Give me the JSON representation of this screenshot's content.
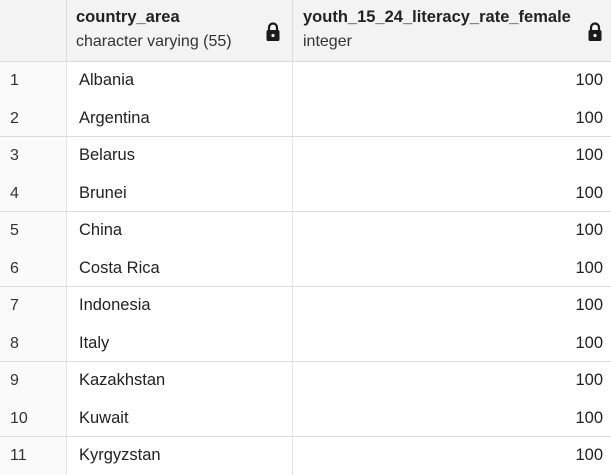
{
  "columns": [
    {
      "name": "country_area",
      "type": "character varying (55)"
    },
    {
      "name": "youth_15_24_literacy_rate_female",
      "type": "integer"
    }
  ],
  "rows": [
    {
      "num": "1",
      "country": "Albania",
      "value": "100"
    },
    {
      "num": "2",
      "country": "Argentina",
      "value": "100"
    },
    {
      "num": "3",
      "country": "Belarus",
      "value": "100"
    },
    {
      "num": "4",
      "country": "Brunei",
      "value": "100"
    },
    {
      "num": "5",
      "country": "China",
      "value": "100"
    },
    {
      "num": "6",
      "country": "Costa Rica",
      "value": "100"
    },
    {
      "num": "7",
      "country": "Indonesia",
      "value": "100"
    },
    {
      "num": "8",
      "country": "Italy",
      "value": "100"
    },
    {
      "num": "9",
      "country": "Kazakhstan",
      "value": "100"
    },
    {
      "num": "10",
      "country": "Kuwait",
      "value": "100"
    },
    {
      "num": "11",
      "country": "Kyrgyzstan",
      "value": "100"
    }
  ],
  "icons": {
    "column_lock": "lock-icon"
  }
}
